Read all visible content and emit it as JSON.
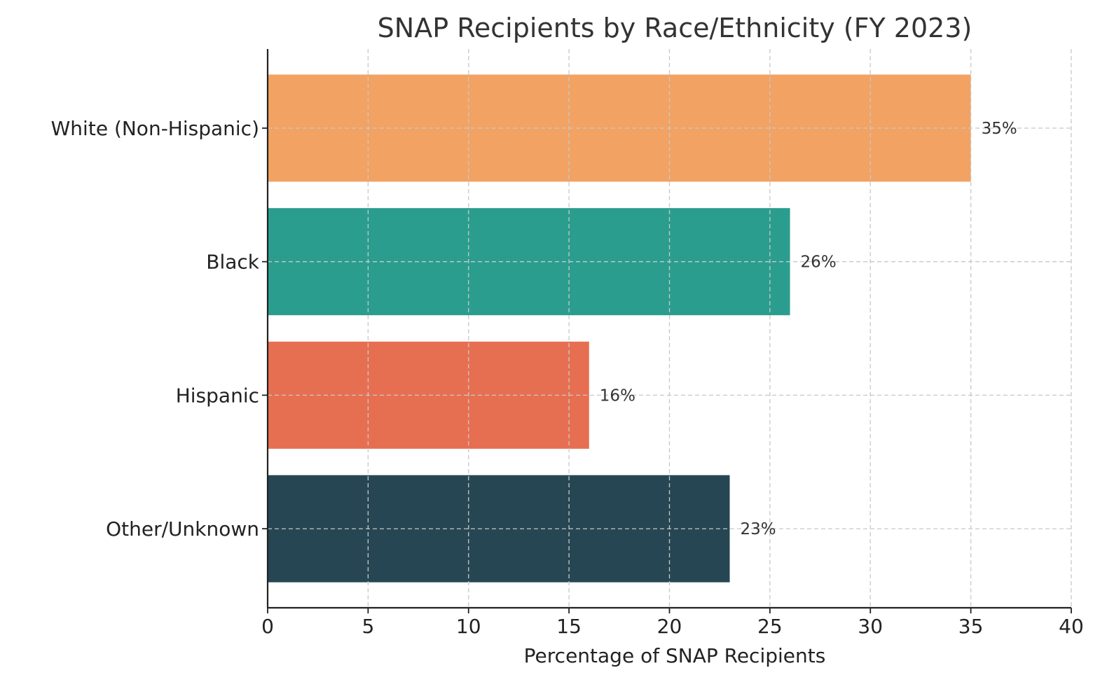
{
  "chart_data": {
    "type": "bar",
    "orientation": "horizontal",
    "title": "SNAP Recipients by Race/Ethnicity (FY 2023)",
    "xlabel": "Percentage of SNAP Recipients",
    "ylabel": "",
    "xlim": [
      0,
      40
    ],
    "xticks": [
      0,
      5,
      10,
      15,
      20,
      25,
      30,
      35,
      40
    ],
    "xtick_labels": [
      "0",
      "5",
      "10",
      "15",
      "20",
      "25",
      "30",
      "35",
      "40"
    ],
    "grid": true,
    "categories": [
      "White (Non-Hispanic)",
      "Black",
      "Hispanic",
      "Other/Unknown"
    ],
    "values": [
      35,
      26,
      16,
      23
    ],
    "value_labels": [
      "35%",
      "26%",
      "16%",
      "23%"
    ],
    "colors": [
      "#F2A262",
      "#2A9D8E",
      "#E76F51",
      "#264653"
    ]
  }
}
